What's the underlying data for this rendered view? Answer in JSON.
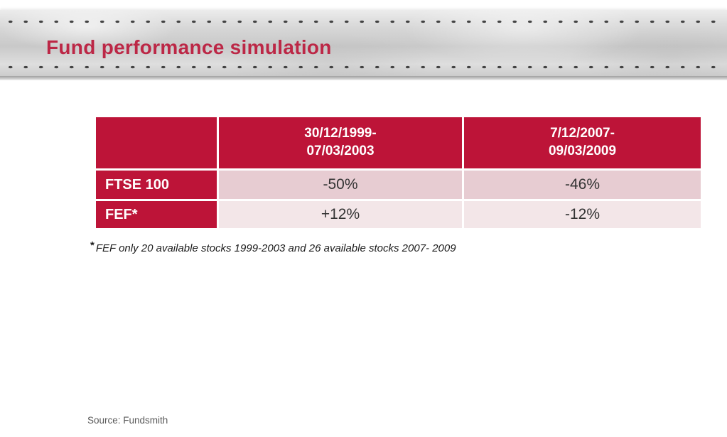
{
  "header_banner": {
    "title": "Fund performance simulation"
  },
  "table": {
    "header": {
      "col1": {
        "line1": "30/12/1999-",
        "line2": "07/03/2003"
      },
      "col2": {
        "line1": "7/12/2007-",
        "line2": "09/03/2009"
      }
    },
    "rows": [
      {
        "label": "FTSE 100",
        "values": [
          "-50%",
          "-46%"
        ]
      },
      {
        "label": "FEF*",
        "values": [
          "+12%",
          "-12%"
        ]
      }
    ]
  },
  "footnote": {
    "marker": "*",
    "text": "FEF only 20 available stocks 1999-2003 and 26 available stocks 2007- 2009"
  },
  "source": "Source: Fundsmith",
  "colors": {
    "accent_red": "#bd1438",
    "title_red": "#bc2746",
    "row_odd_bg": "#e7ccd2",
    "row_even_bg": "#f3e6e8",
    "banner_gray": "#d6d6d6"
  },
  "chart_data": {
    "type": "table",
    "title": "Fund performance simulation",
    "columns": [
      "",
      "30/12/1999-07/03/2003",
      "7/12/2007-09/03/2009"
    ],
    "rows": [
      [
        "FTSE 100",
        "-50%",
        "-46%"
      ],
      [
        "FEF*",
        "+12%",
        "-12%"
      ]
    ],
    "footnote": "FEF only 20 available stocks 1999-2003 and 26 available stocks 2007- 2009",
    "source": "Source: Fundsmith"
  }
}
